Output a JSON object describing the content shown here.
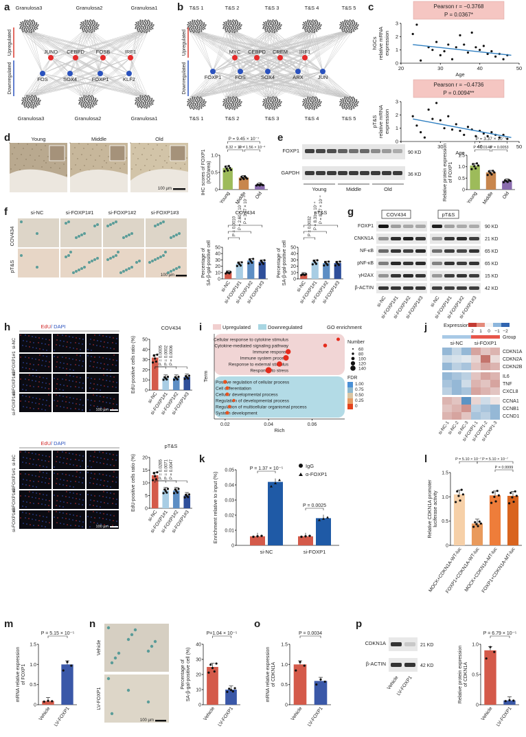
{
  "panels": [
    "a",
    "b",
    "c",
    "d",
    "e",
    "f",
    "g",
    "h",
    "i",
    "j",
    "k",
    "l",
    "m",
    "n",
    "o",
    "p"
  ],
  "a": {
    "top_nodes": [
      "Granulosa3",
      "Granulosa2",
      "Granulosa1"
    ],
    "bottom_nodes": [
      "Granulosa3",
      "Granulosa2",
      "Granulosa1"
    ],
    "up": [
      "JUND",
      "CEBPD",
      "FOSB",
      "IRF1"
    ],
    "down": [
      "FOS",
      "SOX4",
      "FOXP1",
      "KLF2"
    ],
    "up_label": "Upregulated",
    "down_label": "Downregulated"
  },
  "b": {
    "top_nodes": [
      "T&S 1",
      "T&S 2",
      "T&S 3",
      "T&S 4",
      "T&S 5"
    ],
    "bottom_nodes": [
      "T&S 1",
      "T&S 2",
      "T&S 3",
      "T&S 4",
      "T&S 5"
    ],
    "up": [
      "MYC",
      "CEBPD",
      "CREM",
      "IRF1"
    ],
    "down": [
      "FOXP1",
      "FOS",
      "SOX4",
      "ARX",
      "JUN"
    ],
    "up_label": "Upregulated",
    "down_label": "Downregulated"
  },
  "c": {
    "top": {
      "stat1": "Pearson r = −0.3768",
      "stat2": "P = 0.0367*",
      "ylabel1": "hGCs",
      "ylabel2": "relative mRNA",
      "ylabel3": "expression",
      "xlabel": "Age"
    },
    "bottom": {
      "stat1": "Pearson r = −0.4736",
      "stat2": "P = 0.0094**",
      "ylabel1": "pT&S",
      "ylabel2": "relative mRNA",
      "ylabel3": "expression",
      "xlabel": "Age"
    },
    "xticks": [
      "20",
      "30",
      "40",
      "50"
    ],
    "yticks": [
      "0",
      "1",
      "2",
      "3"
    ],
    "stat_bg": "#f5c6c2"
  },
  "d": {
    "images": [
      "Young",
      "Middle",
      "Old"
    ],
    "scale": "100 µm",
    "ylabel": "IHC scores of FOXP1",
    "ylabel2": "(IOD/area)",
    "p_top": "P = 9.45 × 10⁻⁷",
    "p_left": "8.32 × 10⁻⁷",
    "p_right": "P = 1.56 × 10⁻⁴"
  },
  "e": {
    "rows": [
      "FOXP1",
      "GAPDH"
    ],
    "sizes": [
      "90 KD",
      "36 KD"
    ],
    "groups": [
      "Young",
      "Middle",
      "Old"
    ],
    "ylabel": "Relative protein expression",
    "ylabel2": "of FOXP1",
    "p_top": "P = 3.37 × 10⁻⁷",
    "p_left": "P = 0.0148",
    "p_right": "P = 0.0053"
  },
  "f": {
    "cols": [
      "si-NC",
      "si-FOXP1#1",
      "si-FOXP1#2",
      "si-FOXP1#3"
    ],
    "rows": [
      "COV434",
      "pT&S"
    ],
    "scale": "100 µm",
    "chart1_title": "COV434",
    "chart2_title": "pT&S",
    "ylabel": "Percentage of",
    "ylabel2": "SA-β-gal-positive cell",
    "p1": [
      "P = 0.0010",
      "P = 2.60 × 10⁻⁴",
      "P = 3.07 × 10⁻⁴"
    ],
    "p2": [
      "P = 0.0032",
      "P = 8.31 × 10⁻⁴",
      "P = 8.77 × 10⁻⁴"
    ],
    "xcats": [
      "si-NC",
      "si-FOXP1#1",
      "si-FOXP1#2",
      "si-FOXP1#3"
    ]
  },
  "g": {
    "rows": [
      "FOXP1",
      "CNKN1A",
      "NF-κB",
      "pNF-κB",
      "γH2AX",
      "β-ACTIN"
    ],
    "sizes": [
      "90 KD",
      "21 KD",
      "65 KD",
      "65 KD",
      "15 KD",
      "42 KD"
    ],
    "headers": [
      "COV434",
      "pT&S"
    ],
    "xcats": [
      "si-NC",
      "si-FOXP1#1",
      "si-FOXP1#2",
      "si-FOXP1#3"
    ]
  },
  "h": {
    "legend": "EdU/ DAPI",
    "rows1": [
      "si-NC",
      "si-FOXP1#1",
      "si-FOXP1#2",
      "si-FOXP1#3"
    ],
    "scale": "100 µm",
    "chart1_title": "COV434",
    "chart2_title": "pT&S",
    "ylabel": "EdU-positive cells ratio (%)",
    "p1": [
      "P = 0.0005",
      "P = 0.0002",
      "P = 0.0006"
    ],
    "p2": [
      "P = 0.0265",
      "P = 0.0071",
      "P = 0.0047"
    ],
    "xcats": [
      "si-NC",
      "si-FOXP1#1",
      "si-FOXP1#2",
      "si-FOXP1#3"
    ]
  },
  "i": {
    "legend_up": "Upregulated",
    "legend_down": "Downregulated",
    "title": "GO enrichment",
    "ylabel": "Term",
    "xlabel": "Rich",
    "terms_up": [
      "Cellular response to cytokine stimulus",
      "Cytokine-mediated signaling pathway",
      "Immune response",
      "Immune system process",
      "Response to external stimulus",
      "Response to stress"
    ],
    "terms_down": [
      "Positive regulation of cellular process",
      "Cell differentiation",
      "Cellular developmental process",
      "Regulation of developmental process",
      "Regulation of multicellular organismal process",
      "System development"
    ],
    "xticks": [
      "0.02",
      "0.04",
      "0.06"
    ],
    "number_label": "Number",
    "numbers": [
      "60",
      "80",
      "100",
      "120",
      "140"
    ],
    "fdr_label": "FDR",
    "fdr": [
      "1.00",
      "0.75",
      "0.50",
      "0.25",
      "0"
    ]
  },
  "j": {
    "expression": "Expression",
    "scale": [
      "2",
      "1",
      "0",
      "−1",
      "−2"
    ],
    "group": "Group",
    "groups": [
      "si-NC",
      "si-FOXP1"
    ],
    "genes": [
      "CDKN1A",
      "CDKN2A",
      "CDKN2B",
      "IL6",
      "TNF",
      "CXCL8",
      "CCNA1",
      "CCNB1",
      "CCND1"
    ],
    "samples": [
      "si-NC-1",
      "si-NC-2",
      "si-NC-3",
      "si-FOXP1-1",
      "si-FOXP1-2",
      "si-FOXP1-3"
    ]
  },
  "k": {
    "ylabel": "Enrichment relative to input (%)",
    "p1": "P = 1.37 × 10⁻⁵",
    "p2": "P = 0.0025",
    "legend": [
      "IgG",
      "α-FOXP1"
    ],
    "xcats": [
      "si-NC",
      "si-FOXP1"
    ],
    "yticks": [
      "0",
      "0.01",
      "0.02",
      "0.03",
      "0.04",
      "0.05"
    ]
  },
  "l": {
    "ylabel": "Relative CDKN1A promoter",
    "ylabel2": "luciferase activity",
    "p1": "P = 5.10 × 10⁻⁷",
    "p2": "P = 5.10 × 10⁻⁷",
    "p3": "P = 0.9999",
    "xcats": [
      "MOCK+CDKN1A-WT-luc",
      "FOXP1+CDKN1A-WT-luc",
      "MOCK+CDKN1A-MT-luc",
      "FOXP1+CDKN1A-MT-luc"
    ]
  },
  "m": {
    "ylabel": "mRNA relative expression",
    "ylabel2": "of FOXP1",
    "p": "P = 5.15 × 10⁻⁵",
    "xcats": [
      "Vehicle",
      "LV-FOXP1"
    ]
  },
  "n": {
    "images": [
      "Vehicle",
      "LV-FOXP1"
    ],
    "scale": "100 µm",
    "ylabel": "Percentage of",
    "ylabel2": "SA-β-gal-positive cell (%)",
    "p": "P=1.04 × 10⁻⁵",
    "xcats": [
      "Vehicle",
      "LV-FOXP1"
    ]
  },
  "o": {
    "ylabel": "mRNA relative expression",
    "ylabel2": "of CDKN1A",
    "p": "P = 0.0034",
    "xcats": [
      "Vehicle",
      "LV-FOXP1"
    ]
  },
  "p": {
    "rows": [
      "CDKN1A",
      "β-ACTIN"
    ],
    "sizes": [
      "21 KD",
      "42 KD"
    ],
    "lanes": [
      "Vehicle",
      "LV-FOXP1"
    ],
    "ylabel": "Relative protein expression",
    "ylabel2": "of CDKN1A",
    "p": "P = 6.79 × 10⁻⁵",
    "xcats": [
      "Vehicle",
      "LV-FOXP1"
    ]
  },
  "chart_data": [
    {
      "type": "scatter",
      "panel": "c-top",
      "xlabel": "Age",
      "ylabel": "hGCs relative mRNA expression",
      "xlim": [
        20,
        50
      ],
      "ylim": [
        0,
        3
      ],
      "points": [
        [
          23,
          2.2
        ],
        [
          24,
          2.9
        ],
        [
          25,
          0.2
        ],
        [
          27,
          1.2
        ],
        [
          28,
          1.0
        ],
        [
          29,
          1.6
        ],
        [
          30,
          0.6
        ],
        [
          31,
          0.9
        ],
        [
          32,
          1.4
        ],
        [
          33,
          0.3
        ],
        [
          34,
          1.2
        ],
        [
          35,
          2.1
        ],
        [
          36,
          1.4
        ],
        [
          37,
          0.8
        ],
        [
          38,
          2.3
        ],
        [
          39,
          1.2
        ],
        [
          40,
          1.0
        ],
        [
          41,
          1.3
        ],
        [
          42,
          0.7
        ],
        [
          43,
          0.9
        ],
        [
          44,
          0.5
        ],
        [
          45,
          0.7
        ],
        [
          46,
          0.3
        ],
        [
          47,
          0.6
        ]
      ],
      "fit": [
        [
          23,
          1.4
        ],
        [
          48,
          0.6
        ]
      ]
    },
    {
      "type": "scatter",
      "panel": "c-bottom",
      "xlabel": "Age",
      "ylabel": "pT&S relative mRNA expression",
      "xlim": [
        20,
        50
      ],
      "ylim": [
        0,
        3
      ],
      "points": [
        [
          23,
          1.9
        ],
        [
          24,
          1.2
        ],
        [
          25,
          0.7
        ],
        [
          26,
          0.3
        ],
        [
          27,
          2.4
        ],
        [
          28,
          1.7
        ],
        [
          29,
          2.9
        ],
        [
          30,
          1.6
        ],
        [
          31,
          1.0
        ],
        [
          32,
          1.9
        ],
        [
          33,
          0.9
        ],
        [
          34,
          1.3
        ],
        [
          35,
          0.8
        ],
        [
          36,
          0.5
        ],
        [
          37,
          1.1
        ],
        [
          38,
          0.9
        ],
        [
          39,
          0.4
        ],
        [
          40,
          0.8
        ],
        [
          41,
          0.6
        ],
        [
          42,
          0.4
        ],
        [
          43,
          0.7
        ],
        [
          44,
          0.5
        ],
        [
          45,
          0.3
        ],
        [
          46,
          0.5
        ],
        [
          47,
          0.2
        ]
      ],
      "fit": [
        [
          23,
          1.7
        ],
        [
          48,
          0.3
        ]
      ]
    },
    {
      "type": "bar",
      "panel": "d",
      "categories": [
        "Young",
        "Middle",
        "Old"
      ],
      "values": [
        0.63,
        0.35,
        0.14
      ],
      "colors": [
        "#9dbb5a",
        "#c8864d",
        "#8a6cae"
      ],
      "ylim": [
        0,
        1.0
      ],
      "yticks": [
        "0",
        "0.5",
        "1.0"
      ]
    },
    {
      "type": "bar",
      "panel": "e",
      "categories": [
        "Young",
        "Middle",
        "Old"
      ],
      "values": [
        1.05,
        0.75,
        0.38
      ],
      "colors": [
        "#9dbb5a",
        "#c8864d",
        "#8a6cae"
      ],
      "ylim": [
        0,
        1.5
      ],
      "yticks": [
        "0",
        "0.5",
        "1.0",
        "1.5"
      ]
    },
    {
      "type": "bar",
      "panel": "f-COV434",
      "categories": [
        "si-NC",
        "si-FOXP1#1",
        "si-FOXP1#2",
        "si-FOXP1#3"
      ],
      "values": [
        10,
        24,
        29,
        27
      ],
      "colors": [
        "#d45a4a",
        "#a8cde4",
        "#5d8ec4",
        "#2f4f9a"
      ],
      "ylim": [
        0,
        50
      ],
      "yticks": [
        "0",
        "10",
        "20",
        "30",
        "40",
        "50"
      ]
    },
    {
      "type": "bar",
      "panel": "f-pT&S",
      "categories": [
        "si-NC",
        "si-FOXP1#1",
        "si-FOXP1#2",
        "si-FOXP1#3"
      ],
      "values": [
        7,
        27,
        25,
        25
      ],
      "colors": [
        "#d45a4a",
        "#a8cde4",
        "#5d8ec4",
        "#2f4f9a"
      ],
      "ylim": [
        0,
        50
      ],
      "yticks": [
        "0",
        "10",
        "20",
        "30",
        "40",
        "50"
      ]
    },
    {
      "type": "bar",
      "panel": "h-COV434",
      "categories": [
        "si-NC",
        "si-FOXP1#1",
        "si-FOXP1#2",
        "si-FOXP1#3"
      ],
      "values": [
        32,
        12,
        12,
        13
      ],
      "colors": [
        "#d45a4a",
        "#a8cde4",
        "#5d8ec4",
        "#2f4f9a"
      ],
      "ylim": [
        0,
        50
      ],
      "yticks": [
        "0",
        "10",
        "20",
        "30",
        "40",
        "50"
      ]
    },
    {
      "type": "bar",
      "panel": "h-pT&S",
      "categories": [
        "si-NC",
        "si-FOXP1#1",
        "si-FOXP1#2",
        "si-FOXP1#3"
      ],
      "values": [
        13,
        7,
        7,
        5
      ],
      "colors": [
        "#d45a4a",
        "#a8cde4",
        "#5d8ec4",
        "#2f4f9a"
      ],
      "ylim": [
        0,
        20
      ],
      "yticks": [
        "0",
        "5",
        "10",
        "15",
        "20"
      ]
    },
    {
      "type": "bar",
      "panel": "k",
      "categories": [
        "si-NC",
        "si-FOXP1"
      ],
      "series": [
        {
          "name": "IgG",
          "values": [
            0.006,
            0.006
          ]
        },
        {
          "name": "α-FOXP1",
          "values": [
            0.042,
            0.018
          ]
        }
      ],
      "colors": [
        "#d45a4a",
        "#1f5aa6"
      ],
      "ylim": [
        0,
        0.05
      ]
    },
    {
      "type": "bar",
      "panel": "l",
      "categories": [
        "MOCK+CDKN1A-WT-luc",
        "FOXP1+CDKN1A-WT-luc",
        "MOCK+CDKN1A-MT-luc",
        "FOXP1+CDKN1A-MT-luc"
      ],
      "values": [
        1.05,
        0.45,
        1.03,
        1.02
      ],
      "colors": [
        "#f6d0a8",
        "#e99a5c",
        "#ee7d3a",
        "#d9641e"
      ],
      "ylim": [
        0,
        1.5
      ],
      "yticks": [
        "0",
        "0.5",
        "1.0",
        "1.5"
      ]
    },
    {
      "type": "bar",
      "panel": "m",
      "categories": [
        "Vehicle",
        "LV-FOXP1"
      ],
      "values": [
        0.09,
        1.0
      ],
      "colors": [
        "#d45a4a",
        "#3a58a8"
      ],
      "ylim": [
        0,
        1.5
      ],
      "yticks": [
        "0",
        "0.5",
        "1.0",
        "1.5"
      ]
    },
    {
      "type": "bar",
      "panel": "n",
      "categories": [
        "Vehicle",
        "LV-FOXP1"
      ],
      "values": [
        25,
        10
      ],
      "colors": [
        "#d45a4a",
        "#3a58a8"
      ],
      "ylim": [
        0,
        40
      ],
      "yticks": [
        "0",
        "10",
        "20",
        "30",
        "40"
      ]
    },
    {
      "type": "bar",
      "panel": "o",
      "categories": [
        "Vehicle",
        "LV-FOXP1"
      ],
      "values": [
        1.0,
        0.59
      ],
      "colors": [
        "#d45a4a",
        "#3a58a8"
      ],
      "ylim": [
        0,
        1.5
      ],
      "yticks": [
        "0",
        "0.5",
        "1.0",
        "1.5"
      ]
    },
    {
      "type": "bar",
      "panel": "p",
      "categories": [
        "Vehicle",
        "LV-FOXP1"
      ],
      "values": [
        0.9,
        0.07
      ],
      "colors": [
        "#d45a4a",
        "#3a58a8"
      ],
      "ylim": [
        0,
        1.0
      ],
      "yticks": [
        "0",
        "0.5",
        "1.0"
      ]
    },
    {
      "type": "heatmap",
      "panel": "j",
      "rows": [
        "CDKN1A",
        "CDKN2A",
        "CDKN2B",
        "IL6",
        "TNF",
        "CXCL8",
        "CCNA1",
        "CCNB1",
        "CCND1"
      ],
      "cols": [
        "si-NC-1",
        "si-NC-2",
        "si-NC-3",
        "si-FOXP1-1",
        "si-FOXP1-2",
        "si-FOXP1-3"
      ],
      "values": [
        [
          -1,
          -0.5,
          -1,
          1,
          0.6,
          0.8
        ],
        [
          -0.4,
          -0.3,
          -0.2,
          0.4,
          1.6,
          0.3
        ],
        [
          -1,
          -0.6,
          -0.8,
          0.6,
          1,
          0.8
        ],
        [
          -1,
          -0.8,
          -0.6,
          0.6,
          1,
          0.8
        ],
        [
          -0.8,
          -1,
          -0.4,
          0.8,
          0.6,
          1
        ],
        [
          -0.6,
          -1,
          -0.8,
          1,
          0.8,
          0.6
        ],
        [
          0.8,
          0.6,
          -1.6,
          0.4,
          -0.4,
          0.2
        ],
        [
          0.6,
          0.8,
          1.2,
          -0.6,
          -0.8,
          -1
        ],
        [
          0.8,
          1,
          0.6,
          -0.8,
          -0.6,
          -1
        ]
      ]
    },
    {
      "type": "scatter",
      "panel": "i",
      "xlabel": "Rich",
      "xlim": [
        0.015,
        0.075
      ],
      "up": [
        {
          "term": "Cellular response to cytokine stimulus",
          "rich": 0.072,
          "n": 60,
          "fdr": 0.0
        },
        {
          "term": "Cytokine-mediated signaling pathway",
          "rich": 0.066,
          "n": 70,
          "fdr": 0.0
        },
        {
          "term": "Immune response",
          "rich": 0.049,
          "n": 110,
          "fdr": 0.0
        },
        {
          "term": "Immune system process",
          "rich": 0.048,
          "n": 120,
          "fdr": 0.0
        },
        {
          "term": "Response to external stimulus",
          "rich": 0.045,
          "n": 115,
          "fdr": 0.0
        },
        {
          "term": "Response to stress",
          "rich": 0.04,
          "n": 140,
          "fdr": 0.0
        }
      ],
      "down": [
        {
          "term": "Positive regulation of cellular process",
          "rich": 0.02,
          "n": 90,
          "fdr": 0.1
        },
        {
          "term": "Cell differentiation",
          "rich": 0.021,
          "n": 80,
          "fdr": 0.1
        },
        {
          "term": "Cellular developmental process",
          "rich": 0.021,
          "n": 80,
          "fdr": 0.1
        },
        {
          "term": "Regulation of developmental process",
          "rich": 0.024,
          "n": 60,
          "fdr": 0.05
        },
        {
          "term": "Regulation of multicellular organismal process",
          "rich": 0.022,
          "n": 70,
          "fdr": 0.1
        },
        {
          "term": "System development",
          "rich": 0.021,
          "n": 80,
          "fdr": 0.1
        }
      ]
    }
  ]
}
